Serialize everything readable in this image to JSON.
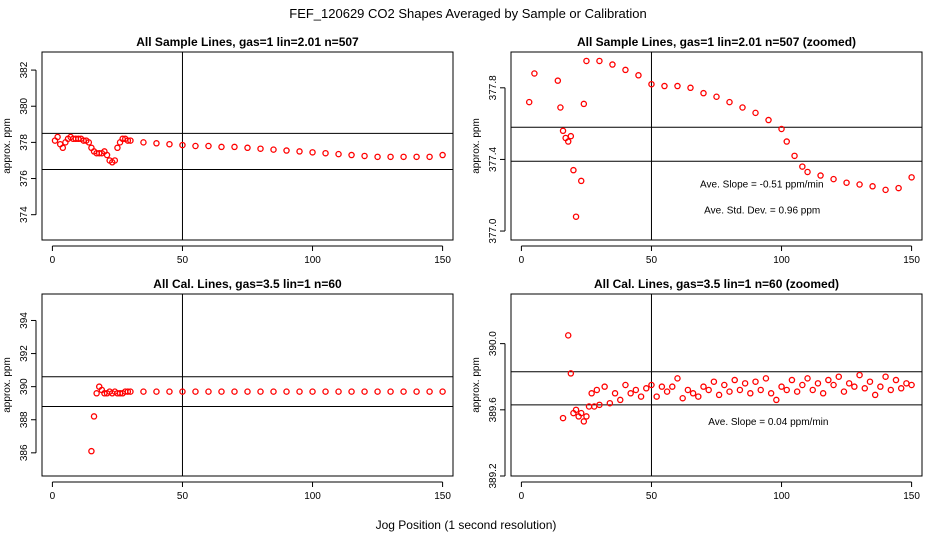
{
  "figure": {
    "title": "FEF_120629  CO2 Shapes Averaged by Sample or Calibration",
    "xlabel": "Jog Position (1 second resolution)"
  },
  "colors": {
    "points": "#ff0000",
    "axes": "#000000",
    "background": "#ffffff"
  },
  "chart_data": [
    {
      "type": "scatter",
      "title": "All Sample Lines, gas=1 lin=2.01 n=507",
      "ylabel": "approx. ppm",
      "xlim": [
        -4,
        154
      ],
      "ylim": [
        372.6,
        383.0
      ],
      "xticks": [
        0,
        50,
        100,
        150
      ],
      "yticks": [
        374,
        376,
        378,
        380,
        382
      ],
      "vline": 50,
      "hlines": [
        376.5,
        378.5
      ],
      "annotations": [],
      "series": [
        {
          "x": [
            1,
            2,
            3,
            4,
            5,
            6,
            7,
            8,
            9,
            10,
            11,
            12,
            13,
            14,
            15,
            16,
            17,
            18,
            19,
            20,
            21,
            22,
            23,
            24,
            25,
            26,
            27,
            28,
            29,
            30,
            35,
            40,
            45,
            50,
            55,
            60,
            65,
            70,
            75,
            80,
            85,
            90,
            95,
            100,
            105,
            110,
            115,
            120,
            125,
            130,
            135,
            140,
            145,
            150
          ],
          "y": [
            378.1,
            378.3,
            377.9,
            377.7,
            378.0,
            378.2,
            378.3,
            378.2,
            378.2,
            378.2,
            378.2,
            378.1,
            378.1,
            378.0,
            377.7,
            377.5,
            377.4,
            377.4,
            377.4,
            377.5,
            377.3,
            377.0,
            376.9,
            377.0,
            377.7,
            378.0,
            378.2,
            378.2,
            378.1,
            378.1,
            378.0,
            377.95,
            377.9,
            377.85,
            377.8,
            377.8,
            377.75,
            377.75,
            377.7,
            377.65,
            377.6,
            377.55,
            377.5,
            377.45,
            377.4,
            377.35,
            377.3,
            377.25,
            377.2,
            377.2,
            377.2,
            377.2,
            377.2,
            377.3
          ]
        }
      ]
    },
    {
      "type": "scatter",
      "title": "All Sample Lines, gas=1 lin=2.01 n=507 (zoomed)",
      "ylabel": "approx. ppm",
      "xlim": [
        -4,
        154
      ],
      "ylim": [
        376.95,
        378.0
      ],
      "xticks": [
        0,
        50,
        100,
        150
      ],
      "yticks": [
        377.0,
        377.4,
        377.8
      ],
      "vline": 50,
      "hlines": [
        377.39,
        377.58
      ],
      "annotations": [
        "Ave. Slope =  -0.51  ppm/min",
        "Ave. Std. Dev. =  0.96  ppm"
      ],
      "series": [
        {
          "x": [
            3,
            5,
            14,
            15,
            16,
            17,
            18,
            19,
            20,
            21,
            23,
            24,
            25,
            30,
            35,
            40,
            45,
            50,
            55,
            60,
            65,
            70,
            75,
            80,
            85,
            90,
            95,
            100,
            102,
            105,
            108,
            110,
            115,
            120,
            125,
            130,
            135,
            140,
            145,
            150
          ],
          "y": [
            377.72,
            377.88,
            377.84,
            377.69,
            377.56,
            377.52,
            377.5,
            377.53,
            377.34,
            377.08,
            377.28,
            377.71,
            377.95,
            377.95,
            377.93,
            377.9,
            377.87,
            377.82,
            377.81,
            377.81,
            377.8,
            377.77,
            377.75,
            377.72,
            377.69,
            377.66,
            377.62,
            377.57,
            377.5,
            377.42,
            377.36,
            377.33,
            377.31,
            377.29,
            377.27,
            377.26,
            377.25,
            377.23,
            377.24,
            377.3
          ]
        }
      ]
    },
    {
      "type": "scatter",
      "title": "All Cal. Lines, gas=3.5 lin=1 n=60",
      "ylabel": "approx. ppm",
      "xlim": [
        -4,
        154
      ],
      "ylim": [
        384.6,
        395.6
      ],
      "xticks": [
        0,
        50,
        100,
        150
      ],
      "yticks": [
        386,
        388,
        390,
        392,
        394
      ],
      "vline": 50,
      "hlines": [
        388.8,
        390.6
      ],
      "annotations": [],
      "series": [
        {
          "x": [
            15,
            16,
            17,
            18,
            19,
            20,
            21,
            22,
            23,
            24,
            25,
            26,
            27,
            28,
            29,
            30,
            35,
            40,
            45,
            50,
            55,
            60,
            65,
            70,
            75,
            80,
            85,
            90,
            95,
            100,
            105,
            110,
            115,
            120,
            125,
            130,
            135,
            140,
            145,
            150
          ],
          "y": [
            386.1,
            388.2,
            389.6,
            390.0,
            389.8,
            389.6,
            389.6,
            389.7,
            389.6,
            389.7,
            389.6,
            389.6,
            389.6,
            389.7,
            389.7,
            389.7,
            389.7,
            389.7,
            389.7,
            389.7,
            389.7,
            389.7,
            389.7,
            389.7,
            389.7,
            389.7,
            389.7,
            389.7,
            389.7,
            389.7,
            389.7,
            389.7,
            389.7,
            389.7,
            389.7,
            389.7,
            389.7,
            389.7,
            389.7,
            389.7
          ]
        }
      ]
    },
    {
      "type": "scatter",
      "title": "All Cal. Lines, gas=3.5 lin=1 n=60 (zoomed)",
      "ylabel": "approx. ppm",
      "xlim": [
        -4,
        154
      ],
      "ylim": [
        389.2,
        390.3
      ],
      "xticks": [
        0,
        50,
        100,
        150
      ],
      "yticks": [
        389.2,
        389.6,
        390.0
      ],
      "vline": 50,
      "hlines": [
        389.63,
        389.83
      ],
      "annotations": [
        "Ave. Slope =  0.04  ppm/min"
      ],
      "series": [
        {
          "x": [
            16,
            18,
            19,
            20,
            21,
            22,
            23,
            24,
            25,
            26,
            27,
            28,
            29,
            30,
            32,
            34,
            36,
            38,
            40,
            42,
            44,
            46,
            48,
            50,
            52,
            54,
            56,
            58,
            60,
            62,
            64,
            66,
            68,
            70,
            72,
            74,
            76,
            78,
            80,
            82,
            84,
            86,
            88,
            90,
            92,
            94,
            96,
            98,
            100,
            102,
            104,
            106,
            108,
            110,
            112,
            114,
            116,
            118,
            120,
            122,
            124,
            126,
            128,
            130,
            132,
            134,
            136,
            138,
            140,
            142,
            144,
            146,
            148,
            150
          ],
          "y": [
            389.55,
            390.05,
            389.82,
            389.58,
            389.6,
            389.56,
            389.58,
            389.53,
            389.56,
            389.62,
            389.7,
            389.62,
            389.72,
            389.63,
            389.74,
            389.64,
            389.7,
            389.66,
            389.75,
            389.7,
            389.72,
            389.68,
            389.73,
            389.75,
            389.68,
            389.74,
            389.71,
            389.74,
            389.79,
            389.67,
            389.72,
            389.7,
            389.68,
            389.74,
            389.72,
            389.77,
            389.69,
            389.75,
            389.71,
            389.78,
            389.72,
            389.76,
            389.7,
            389.77,
            389.72,
            389.79,
            389.7,
            389.66,
            389.74,
            389.72,
            389.78,
            389.71,
            389.75,
            389.79,
            389.72,
            389.76,
            389.7,
            389.78,
            389.75,
            389.8,
            389.71,
            389.76,
            389.74,
            389.81,
            389.73,
            389.77,
            389.69,
            389.74,
            389.8,
            389.72,
            389.78,
            389.73,
            389.76,
            389.75
          ]
        }
      ]
    }
  ]
}
